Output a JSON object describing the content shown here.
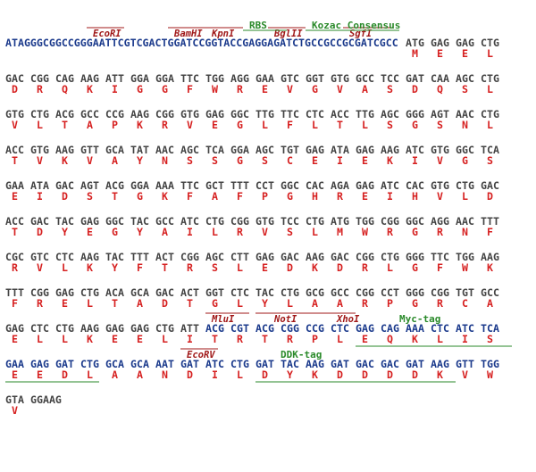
{
  "annotations": {
    "row0": {
      "enzymes": [
        "EcoRI",
        "BamHI",
        "KpnI",
        "BglII",
        "SgfI"
      ],
      "features": [
        "RBS",
        "Kozac Consensus"
      ]
    },
    "row8": {
      "enzymes": [
        "MluI",
        "NotI",
        "XhoI"
      ],
      "features": [
        "Myc-tag"
      ]
    },
    "row9": {
      "enzymes": [
        "EcoRV"
      ],
      "features": [
        "DDK-tag"
      ]
    }
  },
  "rows": [
    {
      "prefix": "ATAGGGCGGCCGGGAATTCGTCGACTGGATCCGGTACCGAGGAGATCTGCCGCCGCGATCGCC",
      "codons": [
        "ATG",
        "GAG",
        "GAG",
        "CTG"
      ],
      "aa": [
        "M",
        "E",
        "E",
        "L"
      ]
    },
    {
      "codons": [
        "GAC",
        "CGG",
        "CAG",
        "AAG",
        "ATT",
        "GGA",
        "GGA",
        "TTC",
        "TGG",
        "AGG",
        "GAA",
        "GTC",
        "GGT",
        "GTG",
        "GCC",
        "TCC",
        "GAT",
        "CAA",
        "AGC",
        "CTG"
      ],
      "aa": [
        "D",
        "R",
        "Q",
        "K",
        "I",
        "G",
        "G",
        "F",
        "W",
        "R",
        "E",
        "V",
        "G",
        "V",
        "A",
        "S",
        "D",
        "Q",
        "S",
        "L"
      ]
    },
    {
      "codons": [
        "GTG",
        "CTG",
        "ACG",
        "GCC",
        "CCG",
        "AAG",
        "CGG",
        "GTG",
        "GAG",
        "GGC",
        "TTG",
        "TTC",
        "CTC",
        "ACC",
        "TTG",
        "AGC",
        "GGG",
        "AGT",
        "AAC",
        "CTG"
      ],
      "aa": [
        "V",
        "L",
        "T",
        "A",
        "P",
        "K",
        "R",
        "V",
        "E",
        "G",
        "L",
        "F",
        "L",
        "T",
        "L",
        "S",
        "G",
        "S",
        "N",
        "L"
      ]
    },
    {
      "codons": [
        "ACC",
        "GTG",
        "AAG",
        "GTT",
        "GCA",
        "TAT",
        "AAC",
        "AGC",
        "TCA",
        "GGA",
        "AGC",
        "TGT",
        "GAG",
        "ATA",
        "GAG",
        "AAG",
        "ATC",
        "GTG",
        "GGC",
        "TCA"
      ],
      "aa": [
        "T",
        "V",
        "K",
        "V",
        "A",
        "Y",
        "N",
        "S",
        "S",
        "G",
        "S",
        "C",
        "E",
        "I",
        "E",
        "K",
        "I",
        "V",
        "G",
        "S"
      ]
    },
    {
      "codons": [
        "GAA",
        "ATA",
        "GAC",
        "AGT",
        "ACG",
        "GGA",
        "AAA",
        "TTC",
        "GCT",
        "TTT",
        "CCT",
        "GGC",
        "CAC",
        "AGA",
        "GAG",
        "ATC",
        "CAC",
        "GTG",
        "CTG",
        "GAC"
      ],
      "aa": [
        "E",
        "I",
        "D",
        "S",
        "T",
        "G",
        "K",
        "F",
        "A",
        "F",
        "P",
        "G",
        "H",
        "R",
        "E",
        "I",
        "H",
        "V",
        "L",
        "D"
      ]
    },
    {
      "codons": [
        "ACC",
        "GAC",
        "TAC",
        "GAG",
        "GGC",
        "TAC",
        "GCC",
        "ATC",
        "CTG",
        "CGG",
        "GTG",
        "TCC",
        "CTG",
        "ATG",
        "TGG",
        "CGG",
        "GGC",
        "AGG",
        "AAC",
        "TTT"
      ],
      "aa": [
        "T",
        "D",
        "Y",
        "E",
        "G",
        "Y",
        "A",
        "I",
        "L",
        "R",
        "V",
        "S",
        "L",
        "M",
        "W",
        "R",
        "G",
        "R",
        "N",
        "F"
      ]
    },
    {
      "codons": [
        "CGC",
        "GTC",
        "CTC",
        "AAG",
        "TAC",
        "TTT",
        "ACT",
        "CGG",
        "AGC",
        "CTT",
        "GAG",
        "GAC",
        "AAG",
        "GAC",
        "CGG",
        "CTG",
        "GGG",
        "TTC",
        "TGG",
        "AAG"
      ],
      "aa": [
        "R",
        "V",
        "L",
        "K",
        "Y",
        "F",
        "T",
        "R",
        "S",
        "L",
        "E",
        "D",
        "K",
        "D",
        "R",
        "L",
        "G",
        "F",
        "W",
        "K"
      ]
    },
    {
      "codons": [
        "TTT",
        "CGG",
        "GAG",
        "CTG",
        "ACA",
        "GCA",
        "GAC",
        "ACT",
        "GGT",
        "CTC",
        "TAC",
        "CTG",
        "GCG",
        "GCC",
        "CGG",
        "CCT",
        "GGG",
        "CGG",
        "TGT",
        "GCC"
      ],
      "aa": [
        "F",
        "R",
        "E",
        "L",
        "T",
        "A",
        "D",
        "T",
        "G",
        "L",
        "Y",
        "L",
        "A",
        "A",
        "R",
        "P",
        "G",
        "R",
        "C",
        "A"
      ]
    },
    {
      "codons": [
        "GAG",
        "CTC",
        "CTG",
        "AAG",
        "GAG",
        "GAG",
        "CTG",
        "ATT",
        "ACG",
        "CGT",
        "ACG",
        "CGG",
        "CCG",
        "CTC",
        "GAG",
        "CAG",
        "AAA",
        "CTC",
        "ATC",
        "TCA"
      ],
      "aa": [
        "E",
        "L",
        "L",
        "K",
        "E",
        "E",
        "L",
        "I",
        "T",
        "R",
        "T",
        "R",
        "P",
        "L",
        "E",
        "Q",
        "K",
        "L",
        "I",
        "S"
      ]
    },
    {
      "codons": [
        "GAA",
        "GAG",
        "GAT",
        "CTG",
        "GCA",
        "GCA",
        "AAT",
        "GAT",
        "ATC",
        "CTG",
        "GAT",
        "TAC",
        "AAG",
        "GAT",
        "GAC",
        "GAC",
        "GAT",
        "AAG",
        "GTT",
        "TGG"
      ],
      "aa": [
        "E",
        "E",
        "D",
        "L",
        "A",
        "A",
        "N",
        "D",
        "I",
        "L",
        "D",
        "Y",
        "K",
        "D",
        "D",
        "D",
        "D",
        "K",
        "V",
        "W"
      ]
    },
    {
      "codons": [
        "GTA",
        "GGAAG"
      ],
      "aa": [
        "V"
      ]
    }
  ]
}
